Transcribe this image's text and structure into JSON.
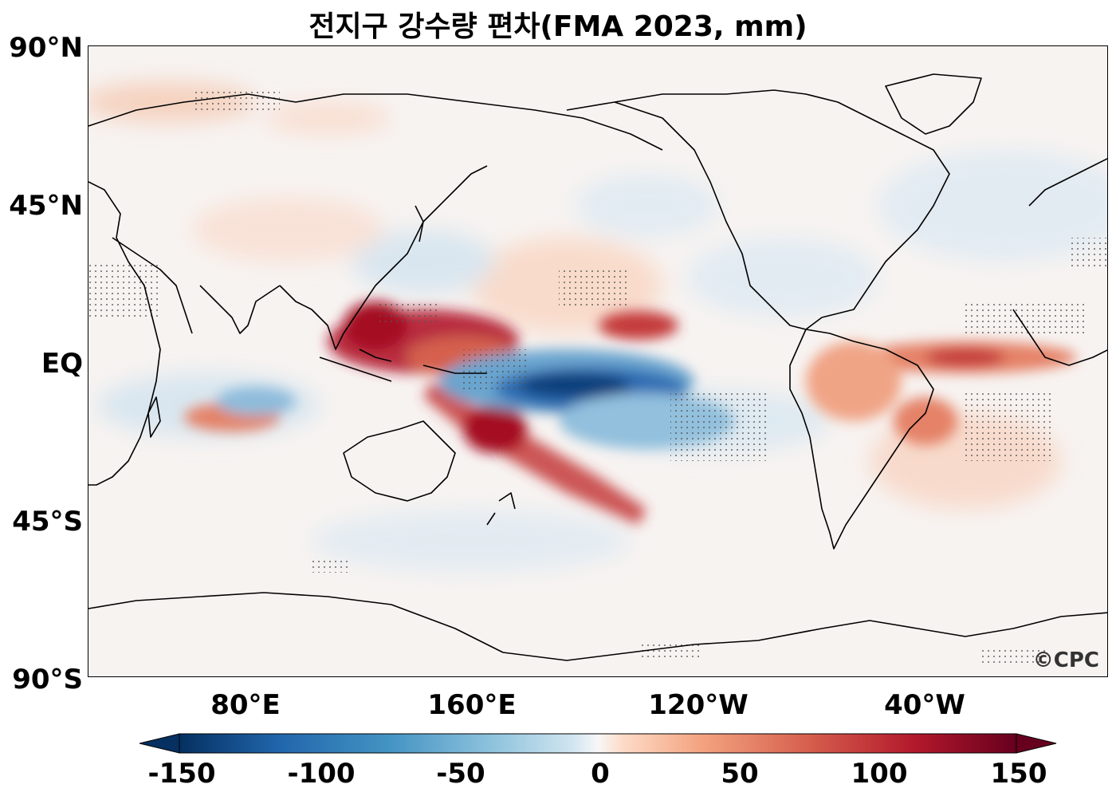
{
  "title": "전지구 강수량 편차(FMA 2023, mm)",
  "lat_labels": [
    "90°N",
    "45°N",
    "EQ",
    "45°S",
    "90°S"
  ],
  "lon_labels": [
    "80°E",
    "160°E",
    "120°W",
    "40°W"
  ],
  "colorbar": {
    "ticks": [
      "-150",
      "-100",
      "-50",
      "0",
      "50",
      "100",
      "150"
    ],
    "colormap": "RdBu_r",
    "low_color": "#053061",
    "mid_color": "#f7f7f7",
    "high_color": "#67001f"
  },
  "credit": "©CPC",
  "icons": [
    "coastline-shapes",
    "stippling-dots"
  ]
}
